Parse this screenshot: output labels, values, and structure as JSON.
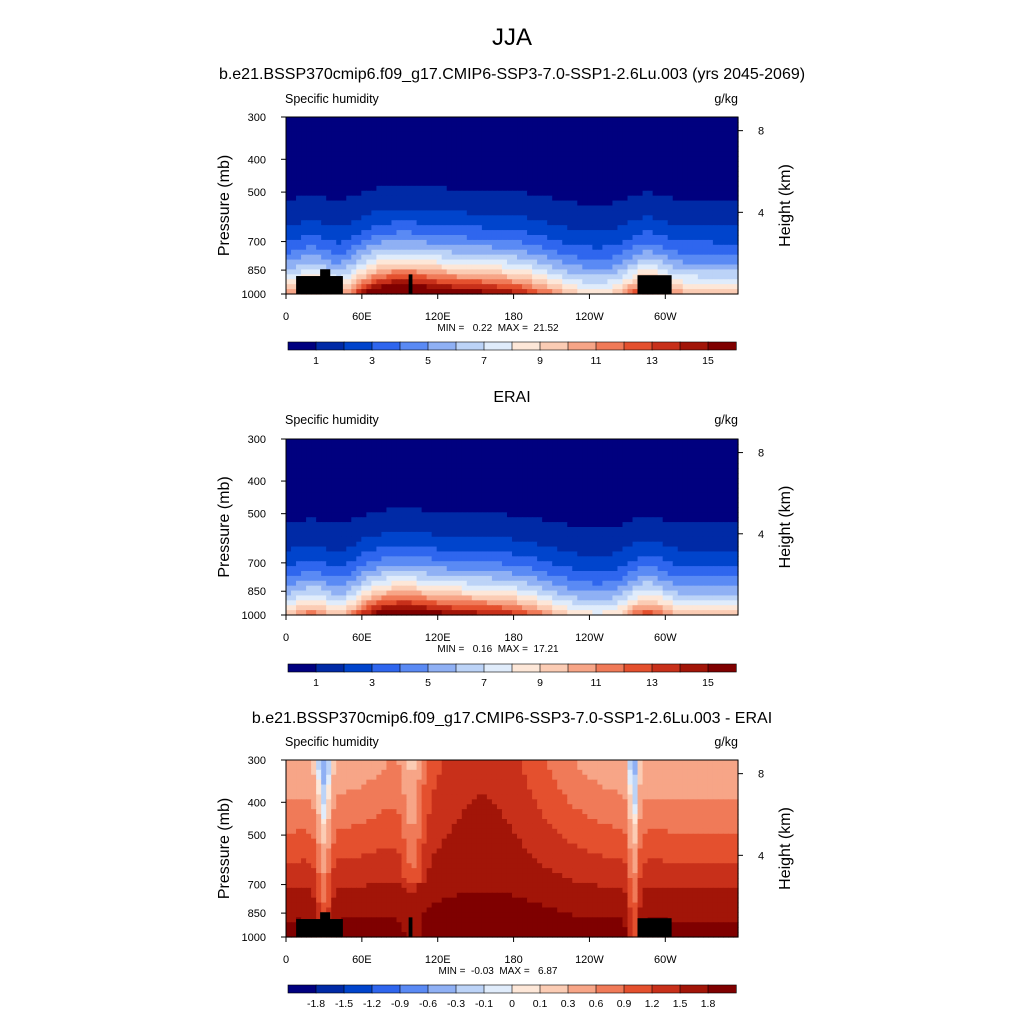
{
  "figure": {
    "title": "JJA"
  },
  "chart_data": [
    {
      "type": "heatmap",
      "title": "b.e21.BSSP370cmip6.f09_g17.CMIP6-SSP3-7.0-SSP1-2.6Lu.003 (yrs 2045-2069)",
      "left_label": "Specific humidity",
      "units": "g/kg",
      "ylabel": "Pressure (mb)",
      "y2label": "Height (km)",
      "x_ticks": [
        "0",
        "60E",
        "120E",
        "180",
        "120W",
        "60W"
      ],
      "y_ticks": [
        "300",
        "400",
        "500",
        "700",
        "850",
        "1000"
      ],
      "y2_ticks": [
        "8",
        "4"
      ],
      "stats_min": "0.22",
      "stats_max": "21.52",
      "stats_label": "MIN =   0.22  MAX =  21.52",
      "colorbar_labels": [
        "1",
        "3",
        "5",
        "7",
        "9",
        "11",
        "13",
        "15"
      ],
      "colorbar_colors": [
        "#00007f",
        "#002aa6",
        "#0044cc",
        "#2f66ee",
        "#5a8af4",
        "#8fb0f4",
        "#bcd3f7",
        "#e0ecfb",
        "#fde7d8",
        "#fbccb4",
        "#f7a587",
        "#f07a58",
        "#e4502e",
        "#c8301a",
        "#a21508",
        "#7f0000"
      ],
      "field": "sh",
      "topography": true
    },
    {
      "type": "heatmap",
      "title": "ERAI",
      "left_label": "Specific humidity",
      "units": "g/kg",
      "ylabel": "Pressure (mb)",
      "y2label": "Height (km)",
      "x_ticks": [
        "0",
        "60E",
        "120E",
        "180",
        "120W",
        "60W"
      ],
      "y_ticks": [
        "300",
        "400",
        "500",
        "700",
        "850",
        "1000"
      ],
      "y2_ticks": [
        "8",
        "4"
      ],
      "stats_min": "0.16",
      "stats_max": "17.21",
      "stats_label": "MIN =   0.16  MAX =  17.21",
      "colorbar_labels": [
        "1",
        "3",
        "5",
        "7",
        "9",
        "11",
        "13",
        "15"
      ],
      "colorbar_colors": [
        "#00007f",
        "#002aa6",
        "#0044cc",
        "#2f66ee",
        "#5a8af4",
        "#8fb0f4",
        "#bcd3f7",
        "#e0ecfb",
        "#fde7d8",
        "#fbccb4",
        "#f7a587",
        "#f07a58",
        "#e4502e",
        "#c8301a",
        "#a21508",
        "#7f0000"
      ],
      "field": "sh_obs",
      "topography": false
    },
    {
      "type": "heatmap",
      "title": "b.e21.BSSP370cmip6.f09_g17.CMIP6-SSP3-7.0-SSP1-2.6Lu.003 - ERAI",
      "left_label": "Specific humidity",
      "units": "g/kg",
      "ylabel": "Pressure (mb)",
      "y2label": "Height (km)",
      "x_ticks": [
        "0",
        "60E",
        "120E",
        "180",
        "120W",
        "60W"
      ],
      "y_ticks": [
        "300",
        "400",
        "500",
        "700",
        "850",
        "1000"
      ],
      "y2_ticks": [
        "8",
        "4"
      ],
      "stats_min": "-0.03",
      "stats_max": "6.87",
      "stats_label": "MIN =  -0.03  MAX =   6.87",
      "colorbar_labels": [
        "-1.8",
        "-1.5",
        "-1.2",
        "-0.9",
        "-0.6",
        "-0.3",
        "-0.1",
        "0",
        "0.1",
        "0.3",
        "0.6",
        "0.9",
        "1.2",
        "1.5",
        "1.8"
      ],
      "colorbar_colors": [
        "#00007f",
        "#002aa6",
        "#0044cc",
        "#2f66ee",
        "#5a8af4",
        "#8fb0f4",
        "#bcd3f7",
        "#e0ecfb",
        "#fde7d8",
        "#fbccb4",
        "#f7a587",
        "#f07a58",
        "#e4502e",
        "#c8301a",
        "#a21508",
        "#7f0000"
      ],
      "field": "diff",
      "topography": true
    }
  ]
}
